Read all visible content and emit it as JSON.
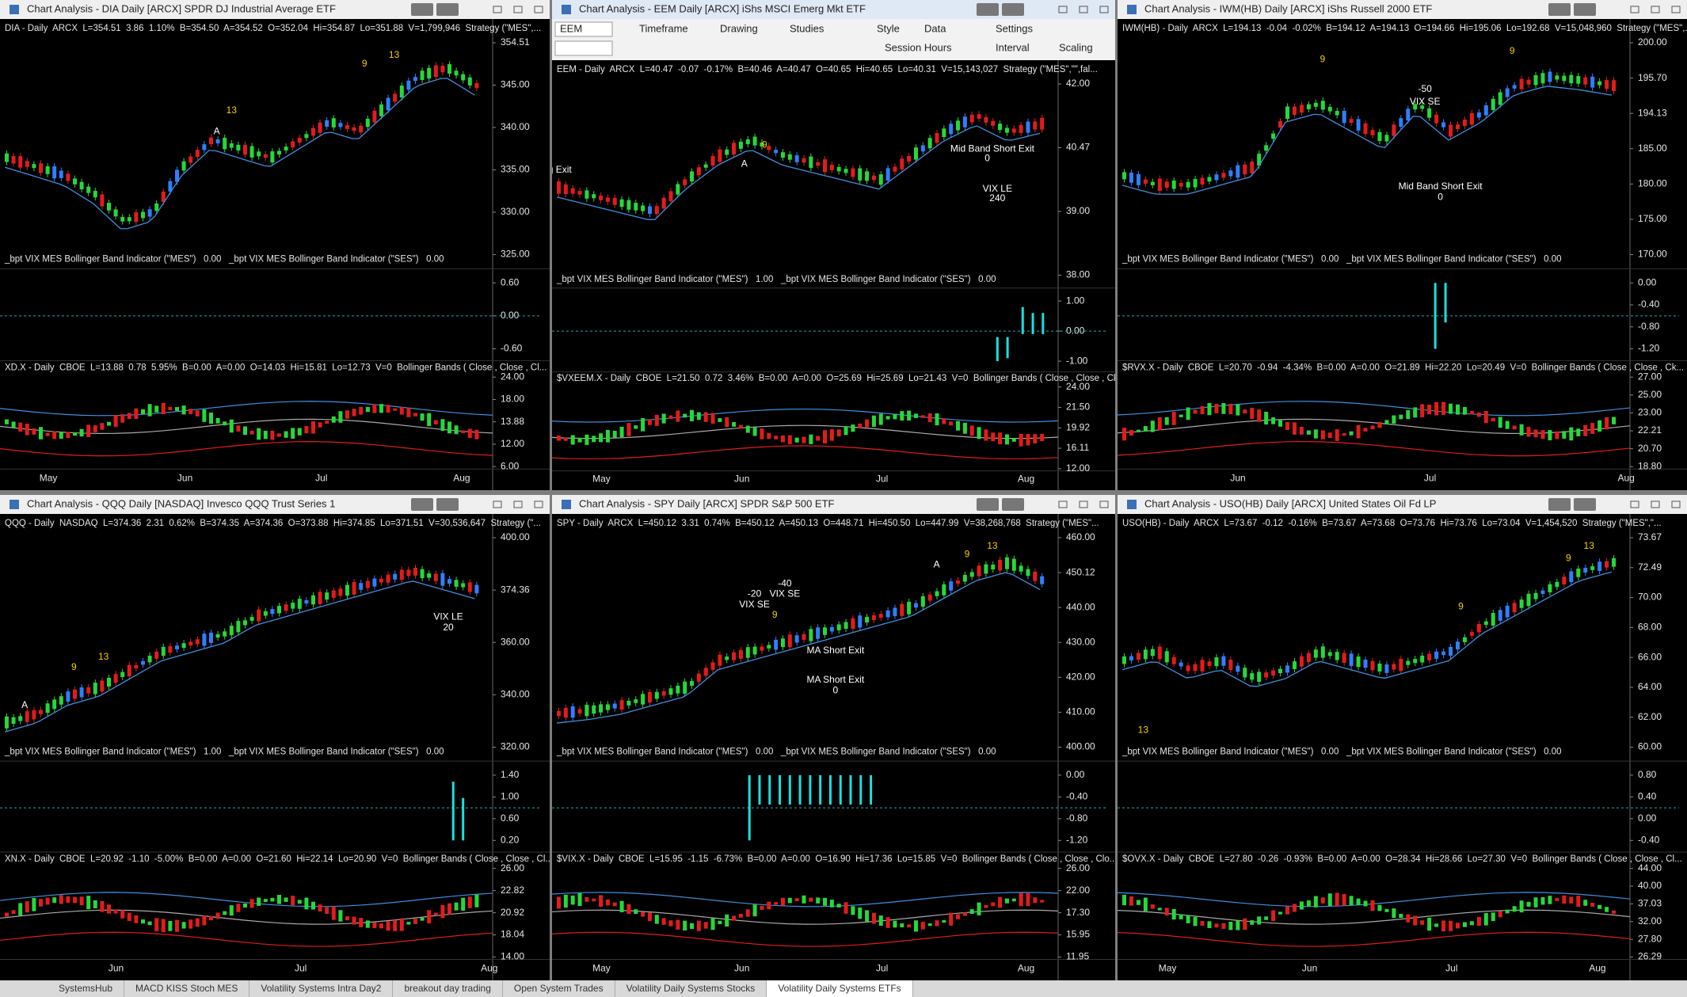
{
  "panels": [
    {
      "title": "Chart Analysis - DIA Daily [ARCX] SPDR DJ Industrial Average ETF",
      "header": "DIA - Daily  ARCX  L=354.51  3.86  1.10%  B=354.50  A=354.52  O=352.04  Hi=354.87  Lo=351.88  V=1,799,946  Strategy (\"MES\",...",
      "price_ticks": [
        "354.51",
        "345.00",
        "340.00",
        "335.00",
        "330.00",
        "325.00"
      ],
      "indicator_header": "_bpt VIX MES Bollinger Band Indicator (\"MES\")   0.00   _bpt VIX MES Bollinger Band Indicator (\"SES\")   0.00",
      "indicator_ticks": [
        "0.60",
        "0.00",
        "-0.60"
      ],
      "vol_header": "XD.X - Daily  CBOE  L=13.88  0.78  5.95%  B=0.00  A=0.00  O=14.03  Hi=15.81  Lo=12.73  V=0  Bollinger Bands ( Close , Close , Cl...",
      "vol_ticks": [
        "24.00",
        "18.00",
        "13.88",
        "12.00",
        "6.00"
      ],
      "dates": [
        "May",
        "Jun",
        "Jul",
        "Aug"
      ],
      "annotations": [
        "A",
        "13",
        "9",
        "13"
      ]
    },
    {
      "title": "Chart Analysis - EEM Daily [ARCX] iShs MSCI Emerg Mkt ETF",
      "toolbar": [
        "EEM",
        "Timeframe",
        "Drawing",
        "Studies",
        "Style",
        "Data",
        "Settings",
        "Session Hours",
        "Interval",
        "Scaling"
      ],
      "header": "EEM - Daily  ARCX  L=40.47  -0.07  -0.17%  B=40.46  A=40.47  O=40.65  Hi=40.65  Lo=40.31  V=15,143,027  Strategy (\"MES\",\"\",fal...",
      "price_ticks": [
        "42.00",
        "40.47",
        "39.00",
        "38.00"
      ],
      "indicator_header": "_bpt VIX MES Bollinger Band Indicator (\"MES\")   1.00   _bpt VIX MES Bollinger Band Indicator (\"SES\")   0.00",
      "indicator_ticks": [
        "1.00",
        "0.00",
        "-1.00"
      ],
      "vol_header": "$VXEEM.X - Daily  CBOE  L=21.50  0.72  3.46%  B=0.00  A=0.00  O=25.69  Hi=25.69  Lo=21.43  V=0  Bollinger Bands ( Close , Close , Ck...",
      "vol_ticks": [
        "24.00",
        "21.50",
        "19.92",
        "16.11",
        "12.00"
      ],
      "dates": [
        "May",
        "Jun",
        "Jul",
        "Aug"
      ],
      "annotations": [
        "ng Exit",
        "A",
        "9",
        "Mid Band Short Exit",
        "0",
        "VIX LE",
        "240"
      ]
    },
    {
      "title": "Chart Analysis - IWM(HB) Daily [ARCX] iShs Russell 2000 ETF",
      "header": "IWM(HB) - Daily  ARCX  L=194.13  -0.04  -0.02%  B=194.12  A=194.13  O=194.66  Hi=195.06  Lo=192.68  V=15,048,960  Strategy (\"MES\",...",
      "price_ticks": [
        "200.00",
        "195.70",
        "194.13",
        "185.00",
        "180.00",
        "175.00",
        "170.00"
      ],
      "indicator_header": "_bpt VIX MES Bollinger Band Indicator (\"MES\")   0.00   _bpt VIX MES Bollinger Band Indicator (\"SES\")   0.00",
      "indicator_ticks": [
        "0.00",
        "-0.40",
        "-0.80",
        "-1.20"
      ],
      "vol_header": "$RVX.X - Daily  CBOE  L=20.70  -0.94  -4.34%  B=0.00  A=0.00  O=21.89  Hi=22.20  Lo=20.49  V=0  Bollinger Bands ( Close , Close , Ck...",
      "vol_ticks": [
        "27.00",
        "25.00",
        "23.00",
        "22.21",
        "20.70",
        "18.80"
      ],
      "dates": [
        "Jun",
        "Jul",
        "Aug"
      ],
      "annotations": [
        "-50",
        "VIX SE",
        "9",
        "9",
        "Mid Band Short Exit",
        "0"
      ]
    },
    {
      "title": "Chart Analysis - QQQ Daily [NASDAQ] Invesco QQQ Trust Series 1",
      "header": "QQQ - Daily  NASDAQ  L=374.36  2.31  0.62%  B=374.35  A=374.36  O=373.88  Hi=374.85  Lo=371.51  V=30,536,647  Strategy (\"...",
      "price_ticks": [
        "400.00",
        "374.36",
        "360.00",
        "340.00",
        "320.00"
      ],
      "indicator_header": "_bpt VIX MES Bollinger Band Indicator (\"MES\")   1.00   _bpt VIX MES Bollinger Band Indicator (\"SES\")   0.00",
      "indicator_ticks": [
        "1.40",
        "1.00",
        "0.60",
        "0.20"
      ],
      "vol_header": "XN.X - Daily  CBOE  L=20.92  -1.10  -5.00%  B=0.00  A=0.00  O=21.60  Hi=22.14  Lo=20.90  V=0  Bollinger Bands ( Close , Close , Cl...",
      "vol_ticks": [
        "26.00",
        "22.82",
        "20.92",
        "18.04",
        "14.00"
      ],
      "dates": [
        "Jun",
        "Jul",
        "Aug"
      ],
      "annotations": [
        "A",
        "9",
        "13",
        "VIX LE",
        "20"
      ]
    },
    {
      "title": "Chart Analysis - SPY Daily [ARCX] SPDR S&P 500 ETF",
      "header": "SPY - Daily  ARCX  L=450.12  3.31  0.74%  B=450.12  A=450.13  O=448.71  Hi=450.50  Lo=447.99  V=38,268,768  Strategy (\"MES\"...",
      "price_ticks": [
        "460.00",
        "450.12",
        "440.00",
        "430.00",
        "420.00",
        "410.00",
        "400.00"
      ],
      "indicator_header": "_bpt VIX MES Bollinger Band Indicator (\"MES\")   0.00   _bpt VIX MES Bollinger Band Indicator (\"SES\")   0.00",
      "indicator_ticks": [
        "0.00",
        "-0.40",
        "-0.80",
        "-1.20"
      ],
      "vol_header": "$VIX.X - Daily  CBOE  L=15.95  -1.15  -6.73%  B=0.00  A=0.00  O=16.90  Hi=17.36  Lo=15.85  V=0  Bollinger Bands ( Close , Close , Clo...",
      "vol_ticks": [
        "26.00",
        "22.00",
        "17.30",
        "15.95",
        "11.95"
      ],
      "dates": [
        "May",
        "Jun",
        "Jul",
        "Aug"
      ],
      "annotations": [
        "-20",
        "VIX SE",
        "-40",
        "VIX SE",
        "9",
        "MA Short Exit",
        "MA Short Exit",
        "0",
        "A",
        "9",
        "13"
      ]
    },
    {
      "title": "Chart Analysis - USO(HB) Daily [ARCX] United States Oil Fd LP",
      "header": "USO(HB) - Daily  ARCX  L=73.67  -0.12  -0.16%  B=73.67  A=73.68  O=73.76  Hi=73.76  Lo=73.04  V=1,454,520  Strategy (\"MES\",\"...",
      "price_ticks": [
        "73.67",
        "72.49",
        "70.00",
        "68.00",
        "66.00",
        "64.00",
        "62.00",
        "60.00"
      ],
      "indicator_header": "_bpt VIX MES Bollinger Band Indicator (\"MES\")   0.00   _bpt VIX MES Bollinger Band Indicator (\"SES\")   0.00",
      "indicator_ticks": [
        "0.80",
        "0.40",
        "0.00",
        "-0.40"
      ],
      "vol_header": "$OVX.X - Daily  CBOE  L=27.80  -0.26  -0.93%  B=0.00  A=0.00  O=28.34  Hi=28.66  Lo=27.30  V=0  Bollinger Bands ( Close , Close , Cl...",
      "vol_ticks": [
        "44.00",
        "40.00",
        "37.03",
        "32.00",
        "27.80",
        "26.29"
      ],
      "dates": [
        "May",
        "Jun",
        "Jul",
        "Aug"
      ],
      "annotations": [
        "13",
        "9",
        "9",
        "13"
      ]
    }
  ],
  "tabs": [
    "SystemsHub",
    "MACD KISS Stoch MES",
    "Volatility Systems Intra Day2",
    "breakout day trading",
    "Open System Trades",
    "Volatility Daily Systems Stocks",
    "Volatility Daily Systems ETFs"
  ]
}
